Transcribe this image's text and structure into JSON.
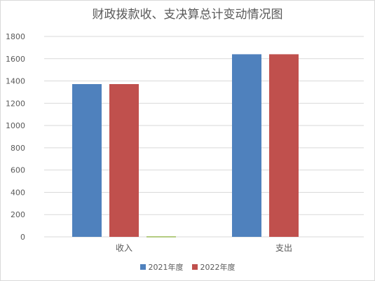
{
  "chart_data": {
    "type": "bar",
    "title": "财政拨款收、支决算总计变动情况图",
    "categories": [
      "收入",
      "支出"
    ],
    "series": [
      {
        "name": "2021年度",
        "color": "#4f81bd",
        "values": [
          1372,
          1640
        ]
      },
      {
        "name": "2022年度",
        "color": "#c0504d",
        "values": [
          1372,
          1640
        ]
      },
      {
        "name": "",
        "color": "#9bbb59",
        "values": [
          5,
          0
        ]
      }
    ],
    "ylim": [
      0,
      1800
    ],
    "yticks": [
      0,
      200,
      400,
      600,
      800,
      1000,
      1200,
      1400,
      1600,
      1800
    ],
    "grid": true,
    "legend": "bottom"
  }
}
